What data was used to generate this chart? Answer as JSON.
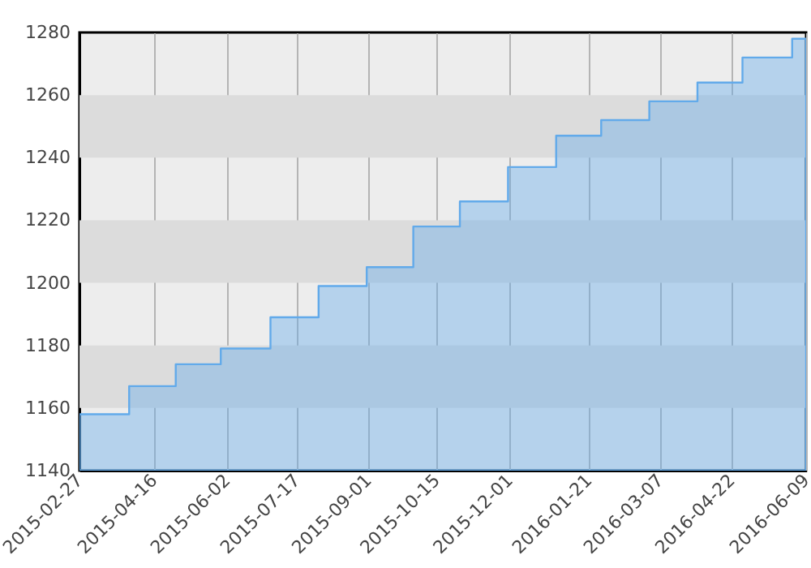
{
  "chart_data": {
    "type": "step",
    "x": [
      "2015-02-27",
      "2015-03-31",
      "2015-04-30",
      "2015-05-29",
      "2015-06-30",
      "2015-07-31",
      "2015-08-31",
      "2015-09-30",
      "2015-10-30",
      "2015-11-30",
      "2015-12-31",
      "2016-01-29",
      "2016-02-29",
      "2016-03-31",
      "2016-04-29",
      "2016-05-31",
      "2016-06-09"
    ],
    "series": [
      {
        "type": "area",
        "color": "#62aaea",
        "values": [
          1158,
          1167,
          1174,
          1179,
          1189,
          1199,
          1205,
          1218,
          1226,
          1237,
          1247,
          1252,
          1258,
          1264,
          1272,
          1278,
          1278
        ]
      }
    ],
    "xlim": [
      "2015-02-27",
      "2016-06-09"
    ],
    "xticks": [
      "2015-02-27",
      "2015-04-16",
      "2015-06-02",
      "2015-07-17",
      "2015-09-01",
      "2015-10-15",
      "2015-12-01",
      "2016-01-21",
      "2016-03-07",
      "2016-04-22",
      "2016-06-09"
    ],
    "ylim": [
      1140,
      1280
    ],
    "yticks": [
      1140,
      1160,
      1180,
      1200,
      1220,
      1240,
      1260,
      1280
    ],
    "bands": [
      {
        "axis": "y",
        "from": 1160,
        "to": 1180,
        "color": "#dcdcdc"
      },
      {
        "axis": "y",
        "from": 1200,
        "to": 1220,
        "color": "#dcdcdc"
      },
      {
        "axis": "y",
        "from": 1240,
        "to": 1260,
        "color": "#dcdcdc"
      }
    ],
    "grid": "x"
  }
}
